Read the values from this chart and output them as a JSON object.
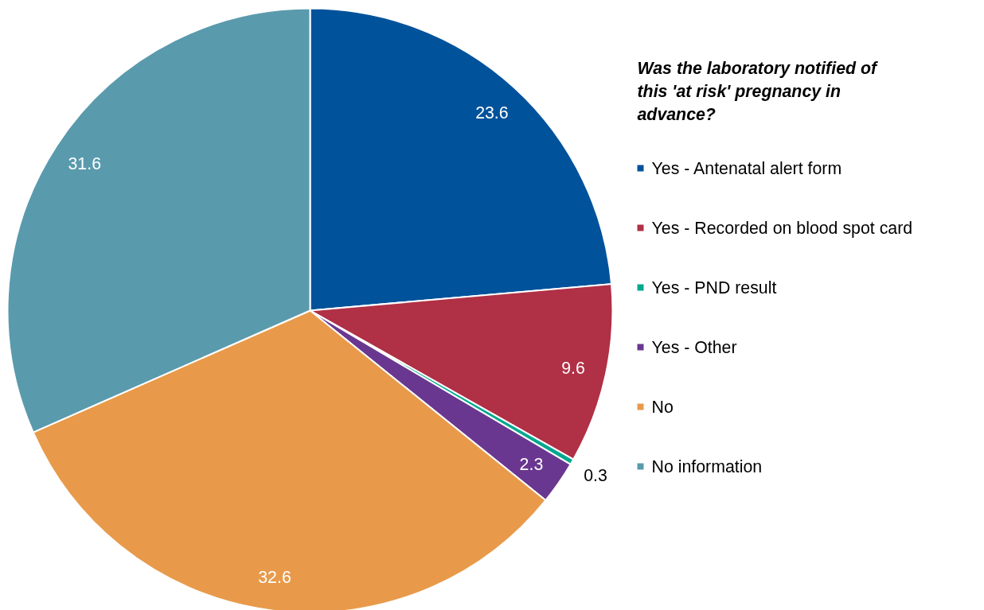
{
  "chart_data": {
    "type": "pie",
    "legend_title": "Was the laboratory notified of this 'at risk' pregnancy in advance?",
    "categories": [
      "Yes - Antenatal alert form",
      "Yes - Recorded on blood spot card",
      "Yes - PND result",
      "Yes - Other",
      "No",
      "No information"
    ],
    "values": [
      23.6,
      9.6,
      0.3,
      2.3,
      32.6,
      31.6
    ],
    "colors": [
      "#00529b",
      "#b03046",
      "#00a88f",
      "#6a3790",
      "#e89a4a",
      "#5a9aad"
    ],
    "data_labels": true,
    "legend": "right"
  }
}
